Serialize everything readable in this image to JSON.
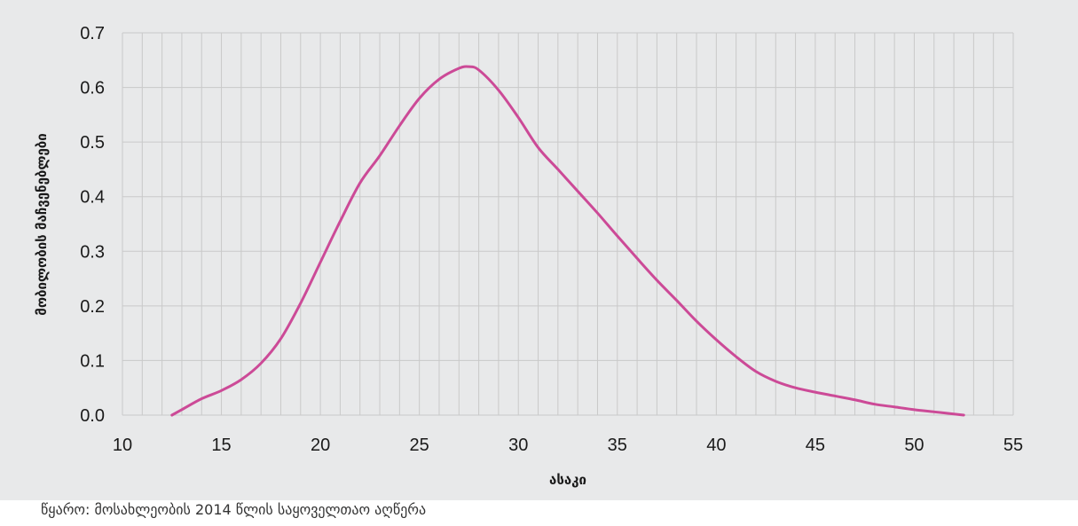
{
  "chart_data": {
    "type": "line",
    "title": "",
    "xlabel": "ასაკი",
    "ylabel": "მობილობის მაჩვენებლები",
    "xlim": [
      10,
      55
    ],
    "ylim": [
      0,
      0.7
    ],
    "x_ticks": [
      10,
      15,
      20,
      25,
      30,
      35,
      40,
      45,
      50,
      55
    ],
    "x_tick_labels": [
      "10",
      "15",
      "20",
      "25",
      "30",
      "35",
      "40",
      "45",
      "50",
      "55"
    ],
    "y_ticks": [
      0,
      0.1,
      0.2,
      0.3,
      0.4,
      0.5,
      0.6,
      0.7
    ],
    "y_tick_labels": [
      "0.0",
      "0.1",
      "0.2",
      "0.3",
      "0.4",
      "0.5",
      "0.6",
      "0.7"
    ],
    "x_minor_step": 1,
    "grid": true,
    "series": [
      {
        "color": "#cc4a97",
        "x": [
          12.5,
          13,
          14,
          15,
          16,
          17,
          18,
          19,
          20,
          21,
          22,
          23,
          24,
          25,
          26,
          27,
          27.5,
          28,
          29,
          30,
          31,
          32,
          33,
          34,
          35,
          36,
          37,
          38,
          39,
          40,
          41,
          42,
          43,
          44,
          45,
          46,
          47,
          48,
          49,
          50,
          51,
          52,
          52.5
        ],
        "y": [
          0.0,
          0.01,
          0.03,
          0.045,
          0.065,
          0.095,
          0.14,
          0.205,
          0.28,
          0.355,
          0.425,
          0.475,
          0.53,
          0.58,
          0.615,
          0.635,
          0.638,
          0.632,
          0.595,
          0.545,
          0.49,
          0.45,
          0.41,
          0.37,
          0.328,
          0.287,
          0.247,
          0.21,
          0.172,
          0.138,
          0.107,
          0.08,
          0.062,
          0.05,
          0.042,
          0.035,
          0.028,
          0.02,
          0.015,
          0.01,
          0.006,
          0.002,
          0.0
        ]
      }
    ]
  },
  "footer": {
    "source": "წყარო: მოსახლეობის 2014 წლის საყოველთაო აღწერა"
  }
}
